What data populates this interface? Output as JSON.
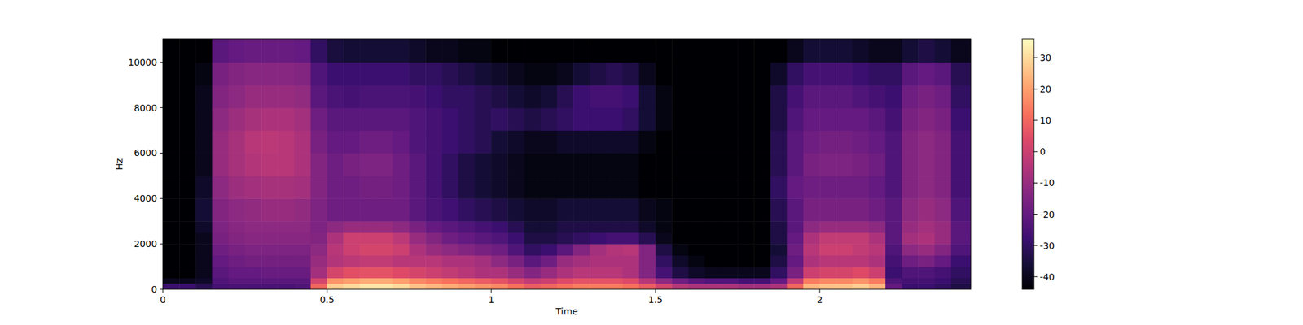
{
  "chart_data": {
    "type": "heatmap",
    "x_label": "Time",
    "y_label": "Hz",
    "color": "magma",
    "xlim": [
      0,
      2.46
    ],
    "ylim": [
      0,
      11025
    ],
    "xticks": [
      0,
      0.5,
      1,
      1.5,
      2
    ],
    "yticks": [
      0,
      2000,
      4000,
      6000,
      8000,
      10000
    ],
    "x_bins": [
      0,
      0.05,
      0.1,
      0.15,
      0.2,
      0.25,
      0.3,
      0.35,
      0.4,
      0.45,
      0.5,
      0.55,
      0.6,
      0.65,
      0.7,
      0.75,
      0.8,
      0.85,
      0.9,
      0.95,
      1,
      1.05,
      1.1,
      1.15,
      1.2,
      1.25,
      1.3,
      1.35,
      1.4,
      1.45,
      1.5,
      1.55,
      1.6,
      1.65,
      1.7,
      1.75,
      1.8,
      1.85,
      1.9,
      1.95,
      2,
      2.05,
      2.1,
      2.15,
      2.2,
      2.25,
      2.3,
      2.35,
      2.4,
      2.46
    ],
    "y_bins": [
      0,
      250,
      500,
      1000,
      1500,
      2000,
      2500,
      3000,
      4000,
      5000,
      6000,
      7000,
      8000,
      9000,
      10000,
      11025
    ],
    "cells": [
      [
        -28,
        -40,
        -44,
        -44,
        -44,
        -44,
        -44,
        -44,
        -44,
        -44,
        -44,
        -44,
        -44,
        -44,
        -44
      ],
      [
        -28,
        -40,
        -44,
        -44,
        -44,
        -44,
        -44,
        -44,
        -44,
        -44,
        -44,
        -44,
        -44,
        -44,
        -44
      ],
      [
        -32,
        -38,
        -40,
        -40,
        -40,
        -40,
        -38,
        -36,
        -38,
        -40,
        -40,
        -40,
        -40,
        -42,
        -44
      ],
      [
        -26,
        -24,
        -22,
        -20,
        -18,
        -16,
        -15,
        -14,
        -12,
        -10,
        -10,
        -12,
        -14,
        -16,
        -22
      ],
      [
        -25,
        -22,
        -20,
        -18,
        -16,
        -14,
        -13,
        -12,
        -9,
        -7,
        -7,
        -9,
        -12,
        -14,
        -20
      ],
      [
        -25,
        -22,
        -20,
        -17,
        -15,
        -13,
        -12,
        -11,
        -8,
        -5,
        -4,
        -7,
        -10,
        -13,
        -19
      ],
      [
        -25,
        -22,
        -19,
        -17,
        -15,
        -13,
        -12,
        -10,
        -7,
        -4,
        -3,
        -6,
        -10,
        -13,
        -19
      ],
      [
        -25,
        -22,
        -19,
        -17,
        -15,
        -13,
        -12,
        -10,
        -7,
        -4,
        -4,
        -6,
        -10,
        -13,
        -19
      ],
      [
        -24,
        -22,
        -19,
        -17,
        -15,
        -13,
        -12,
        -11,
        -8,
        -6,
        -6,
        -8,
        -11,
        -14,
        -20
      ],
      [
        10,
        2,
        -8,
        -10,
        -12,
        -14,
        -15,
        -15,
        -14,
        -14,
        -16,
        -18,
        -22,
        -24,
        -30
      ],
      [
        28,
        18,
        2,
        -5,
        -4,
        -6,
        -12,
        -18,
        -18,
        -18,
        -20,
        -22,
        -25,
        -28,
        -35
      ],
      [
        30,
        20,
        5,
        -3,
        0,
        0,
        -10,
        -18,
        -18,
        -16,
        -20,
        -22,
        -26,
        -28,
        -36
      ],
      [
        32,
        22,
        6,
        -2,
        2,
        0,
        -10,
        -18,
        -17,
        -15,
        -18,
        -22,
        -25,
        -28,
        -36
      ],
      [
        32,
        22,
        6,
        -2,
        2,
        0,
        -10,
        -18,
        -17,
        -15,
        -18,
        -22,
        -25,
        -28,
        -36
      ],
      [
        30,
        20,
        4,
        -4,
        0,
        -3,
        -12,
        -18,
        -18,
        -18,
        -20,
        -22,
        -25,
        -28,
        -36
      ],
      [
        26,
        16,
        2,
        -4,
        -6,
        -10,
        -16,
        -22,
        -22,
        -22,
        -24,
        -24,
        -26,
        -30,
        -38
      ],
      [
        24,
        14,
        0,
        -4,
        -10,
        -14,
        -20,
        -25,
        -26,
        -26,
        -26,
        -26,
        -28,
        -30,
        -40
      ],
      [
        22,
        12,
        -2,
        -6,
        -12,
        -18,
        -22,
        -27,
        -30,
        -30,
        -28,
        -28,
        -30,
        -32,
        -40
      ],
      [
        20,
        10,
        -4,
        -6,
        -14,
        -20,
        -24,
        -30,
        -34,
        -34,
        -30,
        -30,
        -30,
        -34,
        -42
      ],
      [
        18,
        8,
        -6,
        -8,
        -16,
        -22,
        -26,
        -32,
        -36,
        -36,
        -32,
        -32,
        -32,
        -36,
        -42
      ],
      [
        16,
        6,
        -6,
        -12,
        -18,
        -24,
        -28,
        -34,
        -38,
        -38,
        -36,
        -30,
        -34,
        -38,
        -44
      ],
      [
        12,
        2,
        -10,
        -16,
        -24,
        -28,
        -32,
        -36,
        -40,
        -40,
        -38,
        -32,
        -36,
        -40,
        -44
      ],
      [
        8,
        -2,
        -14,
        -22,
        -30,
        -34,
        -36,
        -38,
        -42,
        -42,
        -40,
        -34,
        -38,
        -42,
        -44
      ],
      [
        10,
        0,
        -10,
        -18,
        -28,
        -34,
        -36,
        -38,
        -42,
        -42,
        -40,
        -32,
        -36,
        -42,
        -44
      ],
      [
        12,
        4,
        -6,
        -10,
        -22,
        -32,
        -34,
        -36,
        -42,
        -42,
        -38,
        -30,
        -32,
        -40,
        -44
      ],
      [
        14,
        6,
        -4,
        -8,
        -14,
        -30,
        -34,
        -36,
        -42,
        -42,
        -38,
        -28,
        -28,
        -36,
        -44
      ],
      [
        14,
        6,
        -4,
        -6,
        -8,
        -28,
        -34,
        -36,
        -42,
        -42,
        -38,
        -28,
        -26,
        -34,
        -44
      ],
      [
        14,
        6,
        -4,
        -6,
        -5,
        -26,
        -34,
        -36,
        -42,
        -42,
        -38,
        -28,
        -26,
        -32,
        -44
      ],
      [
        12,
        4,
        -6,
        -6,
        -4,
        -26,
        -34,
        -36,
        -42,
        -42,
        -38,
        -30,
        -28,
        -34,
        -44
      ],
      [
        8,
        -4,
        -14,
        -14,
        -14,
        -32,
        -38,
        -40,
        -44,
        -44,
        -42,
        -36,
        -36,
        -40,
        -44
      ],
      [
        2,
        -12,
        -26,
        -30,
        -34,
        -40,
        -42,
        -42,
        -44,
        -44,
        -44,
        -42,
        -42,
        -44,
        -44
      ],
      [
        -4,
        -18,
        -34,
        -38,
        -42,
        -44,
        -44,
        -44,
        -44,
        -44,
        -44,
        -44,
        -44,
        -44,
        -44
      ],
      [
        -6,
        -22,
        -38,
        -42,
        -44,
        -44,
        -44,
        -44,
        -44,
        -44,
        -44,
        -44,
        -44,
        -44,
        -44
      ],
      [
        -6,
        -24,
        -40,
        -44,
        -44,
        -44,
        -44,
        -44,
        -44,
        -44,
        -44,
        -44,
        -44,
        -44,
        -44
      ],
      [
        -6,
        -24,
        -40,
        -44,
        -44,
        -44,
        -44,
        -44,
        -44,
        -44,
        -44,
        -44,
        -44,
        -44,
        -44
      ],
      [
        -8,
        -26,
        -40,
        -44,
        -44,
        -44,
        -44,
        -44,
        -44,
        -44,
        -44,
        -44,
        -44,
        -44,
        -44
      ],
      [
        -8,
        -26,
        -40,
        -44,
        -44,
        -44,
        -44,
        -44,
        -44,
        -44,
        -44,
        -44,
        -44,
        -44,
        -44
      ],
      [
        -6,
        -20,
        -30,
        -34,
        -36,
        -34,
        -34,
        -32,
        -30,
        -32,
        -32,
        -34,
        -34,
        -38,
        -44
      ],
      [
        10,
        -2,
        -16,
        -20,
        -18,
        -20,
        -22,
        -22,
        -20,
        -22,
        -22,
        -24,
        -26,
        -30,
        -40
      ],
      [
        24,
        14,
        0,
        -6,
        -4,
        -6,
        -12,
        -16,
        -18,
        -16,
        -18,
        -20,
        -22,
        -26,
        -36
      ],
      [
        26,
        16,
        2,
        -4,
        0,
        -2,
        -10,
        -16,
        -18,
        -15,
        -17,
        -20,
        -22,
        -26,
        -36
      ],
      [
        26,
        16,
        2,
        -4,
        0,
        -2,
        -10,
        -16,
        -18,
        -15,
        -17,
        -20,
        -22,
        -26,
        -36
      ],
      [
        28,
        18,
        4,
        -4,
        -2,
        -2,
        -10,
        -16,
        -18,
        -16,
        -18,
        -20,
        -24,
        -28,
        -38
      ],
      [
        24,
        14,
        0,
        -6,
        -4,
        -6,
        -12,
        -18,
        -20,
        -18,
        -20,
        -22,
        -26,
        -30,
        -40
      ],
      [
        -20,
        -24,
        -28,
        -26,
        -24,
        -22,
        -22,
        -22,
        -24,
        -24,
        -24,
        -26,
        -28,
        -30,
        -40
      ],
      [
        -28,
        -26,
        -24,
        -18,
        -12,
        -8,
        -10,
        -12,
        -14,
        -14,
        -14,
        -16,
        -18,
        -22,
        -36
      ],
      [
        -28,
        -26,
        -24,
        -16,
        -10,
        -6,
        -8,
        -10,
        -12,
        -12,
        -12,
        -14,
        -16,
        -20,
        -34
      ],
      [
        -30,
        -28,
        -26,
        -20,
        -14,
        -10,
        -10,
        -12,
        -14,
        -14,
        -14,
        -16,
        -18,
        -22,
        -36
      ],
      [
        -34,
        -32,
        -30,
        -28,
        -24,
        -22,
        -22,
        -24,
        -26,
        -26,
        -26,
        -28,
        -30,
        -32,
        -40
      ]
    ],
    "colorbar": {
      "range": [
        -44,
        36
      ],
      "ticks": [
        -40,
        -30,
        -20,
        -10,
        0,
        10,
        20,
        30
      ]
    }
  }
}
